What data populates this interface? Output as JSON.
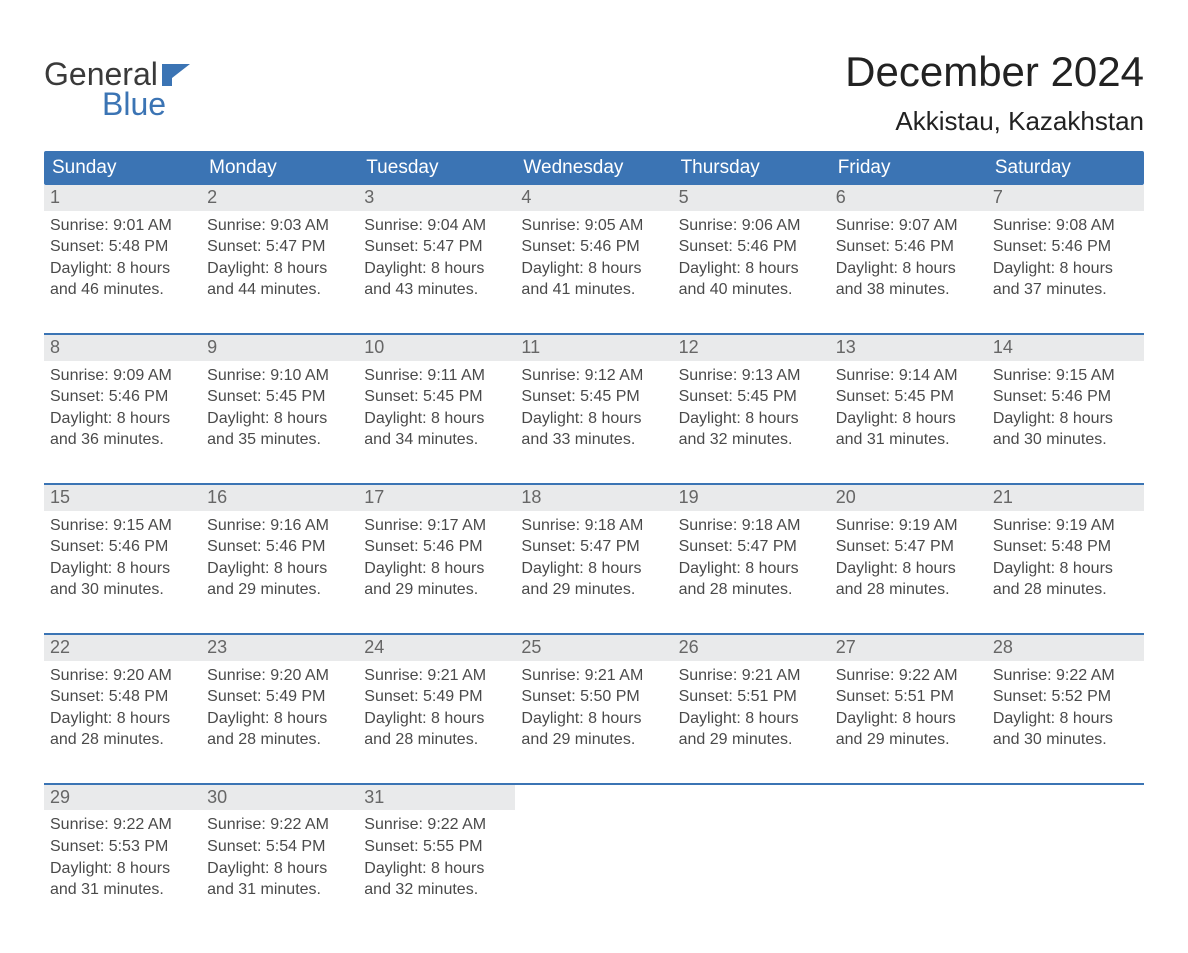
{
  "brand": {
    "word1": "General",
    "word2": "Blue"
  },
  "title": {
    "month_year": "December 2024",
    "location": "Akkistau, Kazakhstan"
  },
  "colors": {
    "brand_blue": "#3b74b4",
    "gray_bar": "#e9eaeb",
    "header_text": "#ffffff",
    "body_text": "#444444",
    "title_text": "#222222"
  },
  "weekdays": [
    "Sunday",
    "Monday",
    "Tuesday",
    "Wednesday",
    "Thursday",
    "Friday",
    "Saturday"
  ],
  "weeks": [
    [
      {
        "n": "1",
        "sunrise": "Sunrise: 9:01 AM",
        "sunset": "Sunset: 5:48 PM",
        "d1": "Daylight: 8 hours",
        "d2": "and 46 minutes."
      },
      {
        "n": "2",
        "sunrise": "Sunrise: 9:03 AM",
        "sunset": "Sunset: 5:47 PM",
        "d1": "Daylight: 8 hours",
        "d2": "and 44 minutes."
      },
      {
        "n": "3",
        "sunrise": "Sunrise: 9:04 AM",
        "sunset": "Sunset: 5:47 PM",
        "d1": "Daylight: 8 hours",
        "d2": "and 43 minutes."
      },
      {
        "n": "4",
        "sunrise": "Sunrise: 9:05 AM",
        "sunset": "Sunset: 5:46 PM",
        "d1": "Daylight: 8 hours",
        "d2": "and 41 minutes."
      },
      {
        "n": "5",
        "sunrise": "Sunrise: 9:06 AM",
        "sunset": "Sunset: 5:46 PM",
        "d1": "Daylight: 8 hours",
        "d2": "and 40 minutes."
      },
      {
        "n": "6",
        "sunrise": "Sunrise: 9:07 AM",
        "sunset": "Sunset: 5:46 PM",
        "d1": "Daylight: 8 hours",
        "d2": "and 38 minutes."
      },
      {
        "n": "7",
        "sunrise": "Sunrise: 9:08 AM",
        "sunset": "Sunset: 5:46 PM",
        "d1": "Daylight: 8 hours",
        "d2": "and 37 minutes."
      }
    ],
    [
      {
        "n": "8",
        "sunrise": "Sunrise: 9:09 AM",
        "sunset": "Sunset: 5:46 PM",
        "d1": "Daylight: 8 hours",
        "d2": "and 36 minutes."
      },
      {
        "n": "9",
        "sunrise": "Sunrise: 9:10 AM",
        "sunset": "Sunset: 5:45 PM",
        "d1": "Daylight: 8 hours",
        "d2": "and 35 minutes."
      },
      {
        "n": "10",
        "sunrise": "Sunrise: 9:11 AM",
        "sunset": "Sunset: 5:45 PM",
        "d1": "Daylight: 8 hours",
        "d2": "and 34 minutes."
      },
      {
        "n": "11",
        "sunrise": "Sunrise: 9:12 AM",
        "sunset": "Sunset: 5:45 PM",
        "d1": "Daylight: 8 hours",
        "d2": "and 33 minutes."
      },
      {
        "n": "12",
        "sunrise": "Sunrise: 9:13 AM",
        "sunset": "Sunset: 5:45 PM",
        "d1": "Daylight: 8 hours",
        "d2": "and 32 minutes."
      },
      {
        "n": "13",
        "sunrise": "Sunrise: 9:14 AM",
        "sunset": "Sunset: 5:45 PM",
        "d1": "Daylight: 8 hours",
        "d2": "and 31 minutes."
      },
      {
        "n": "14",
        "sunrise": "Sunrise: 9:15 AM",
        "sunset": "Sunset: 5:46 PM",
        "d1": "Daylight: 8 hours",
        "d2": "and 30 minutes."
      }
    ],
    [
      {
        "n": "15",
        "sunrise": "Sunrise: 9:15 AM",
        "sunset": "Sunset: 5:46 PM",
        "d1": "Daylight: 8 hours",
        "d2": "and 30 minutes."
      },
      {
        "n": "16",
        "sunrise": "Sunrise: 9:16 AM",
        "sunset": "Sunset: 5:46 PM",
        "d1": "Daylight: 8 hours",
        "d2": "and 29 minutes."
      },
      {
        "n": "17",
        "sunrise": "Sunrise: 9:17 AM",
        "sunset": "Sunset: 5:46 PM",
        "d1": "Daylight: 8 hours",
        "d2": "and 29 minutes."
      },
      {
        "n": "18",
        "sunrise": "Sunrise: 9:18 AM",
        "sunset": "Sunset: 5:47 PM",
        "d1": "Daylight: 8 hours",
        "d2": "and 29 minutes."
      },
      {
        "n": "19",
        "sunrise": "Sunrise: 9:18 AM",
        "sunset": "Sunset: 5:47 PM",
        "d1": "Daylight: 8 hours",
        "d2": "and 28 minutes."
      },
      {
        "n": "20",
        "sunrise": "Sunrise: 9:19 AM",
        "sunset": "Sunset: 5:47 PM",
        "d1": "Daylight: 8 hours",
        "d2": "and 28 minutes."
      },
      {
        "n": "21",
        "sunrise": "Sunrise: 9:19 AM",
        "sunset": "Sunset: 5:48 PM",
        "d1": "Daylight: 8 hours",
        "d2": "and 28 minutes."
      }
    ],
    [
      {
        "n": "22",
        "sunrise": "Sunrise: 9:20 AM",
        "sunset": "Sunset: 5:48 PM",
        "d1": "Daylight: 8 hours",
        "d2": "and 28 minutes."
      },
      {
        "n": "23",
        "sunrise": "Sunrise: 9:20 AM",
        "sunset": "Sunset: 5:49 PM",
        "d1": "Daylight: 8 hours",
        "d2": "and 28 minutes."
      },
      {
        "n": "24",
        "sunrise": "Sunrise: 9:21 AM",
        "sunset": "Sunset: 5:49 PM",
        "d1": "Daylight: 8 hours",
        "d2": "and 28 minutes."
      },
      {
        "n": "25",
        "sunrise": "Sunrise: 9:21 AM",
        "sunset": "Sunset: 5:50 PM",
        "d1": "Daylight: 8 hours",
        "d2": "and 29 minutes."
      },
      {
        "n": "26",
        "sunrise": "Sunrise: 9:21 AM",
        "sunset": "Sunset: 5:51 PM",
        "d1": "Daylight: 8 hours",
        "d2": "and 29 minutes."
      },
      {
        "n": "27",
        "sunrise": "Sunrise: 9:22 AM",
        "sunset": "Sunset: 5:51 PM",
        "d1": "Daylight: 8 hours",
        "d2": "and 29 minutes."
      },
      {
        "n": "28",
        "sunrise": "Sunrise: 9:22 AM",
        "sunset": "Sunset: 5:52 PM",
        "d1": "Daylight: 8 hours",
        "d2": "and 30 minutes."
      }
    ],
    [
      {
        "n": "29",
        "sunrise": "Sunrise: 9:22 AM",
        "sunset": "Sunset: 5:53 PM",
        "d1": "Daylight: 8 hours",
        "d2": "and 31 minutes."
      },
      {
        "n": "30",
        "sunrise": "Sunrise: 9:22 AM",
        "sunset": "Sunset: 5:54 PM",
        "d1": "Daylight: 8 hours",
        "d2": "and 31 minutes."
      },
      {
        "n": "31",
        "sunrise": "Sunrise: 9:22 AM",
        "sunset": "Sunset: 5:55 PM",
        "d1": "Daylight: 8 hours",
        "d2": "and 32 minutes."
      },
      {
        "empty": true
      },
      {
        "empty": true
      },
      {
        "empty": true
      },
      {
        "empty": true
      }
    ]
  ]
}
